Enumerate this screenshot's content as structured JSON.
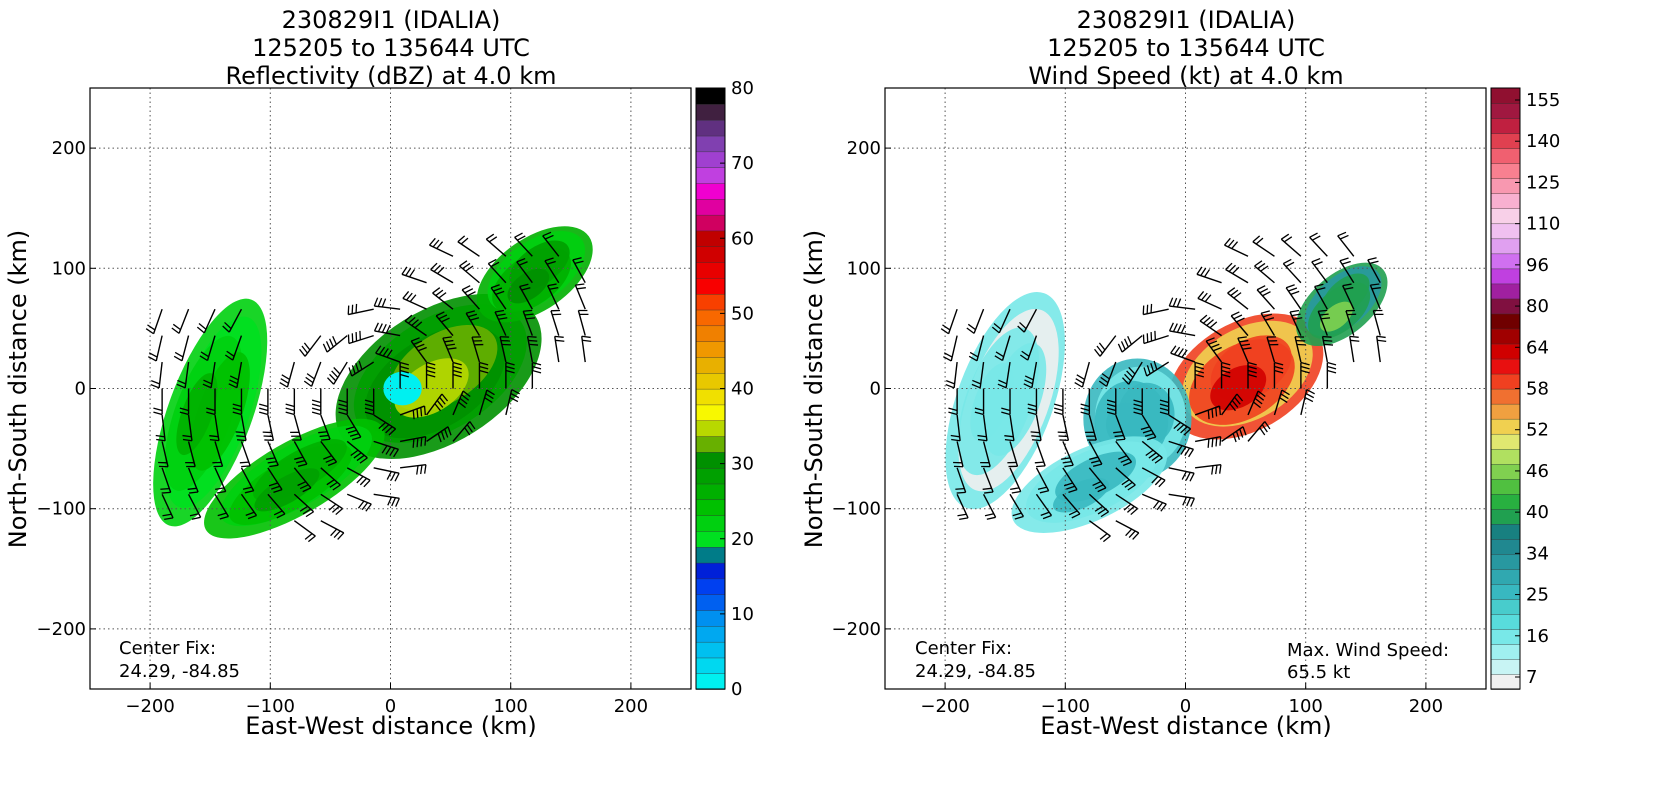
{
  "chart_data": [
    {
      "type": "heatmap",
      "title": [
        "230829I1 (IDALIA)",
        "125205 to 135644 UTC",
        "Reflectivity (dBZ) at 4.0 km"
      ],
      "xlabel": "East-West distance (km)",
      "ylabel": "North-South distance (km)",
      "xlim": [
        -250,
        250
      ],
      "ylim": [
        -250,
        250
      ],
      "xticks": [
        -200,
        -100,
        0,
        100,
        200
      ],
      "yticks": [
        -200,
        -100,
        0,
        100,
        200
      ],
      "xtick_labels": [
        "−200",
        "−100",
        "0",
        "100",
        "200"
      ],
      "ytick_labels": [
        "−200",
        "−100",
        "0",
        "100",
        "200"
      ],
      "grid": true,
      "annotations": [
        {
          "text": "Center Fix:",
          "corner": "bottom-left",
          "line": 1
        },
        {
          "text": "24.29, -84.85",
          "corner": "bottom-left",
          "line": 2
        }
      ],
      "colorbar": {
        "min": 0,
        "max": 80,
        "ticks": [
          0,
          10,
          20,
          30,
          40,
          50,
          60,
          70,
          80
        ],
        "tick_labels": [
          "0",
          "10",
          "20",
          "30",
          "40",
          "50",
          "60",
          "70",
          "80"
        ],
        "colors": [
          "#00f0f0",
          "#00d8f0",
          "#00c0f0",
          "#00a8f0",
          "#0090f0",
          "#0060f0",
          "#0040f0",
          "#0020d8",
          "#007c88",
          "#00e020",
          "#00d010",
          "#00c000",
          "#00b000",
          "#00a000",
          "#009000",
          "#68b000",
          "#b8d800",
          "#f8f800",
          "#f0e000",
          "#e8c800",
          "#e8b000",
          "#f09800",
          "#f08000",
          "#f86800",
          "#f84000",
          "#f80000",
          "#e80000",
          "#d00000",
          "#c00000",
          "#d00060",
          "#e000a0",
          "#f000d0",
          "#c040e0",
          "#a040d0",
          "#8040b0",
          "#603080",
          "#402040",
          "#000000"
        ]
      },
      "storm_center": [
        0,
        0
      ],
      "rain_regions": [
        {
          "name": "inner-core",
          "cx": 40,
          "cy": 10,
          "rx": 95,
          "ry": 55,
          "rotation": -32,
          "value": 30
        },
        {
          "name": "eye",
          "cx": 10,
          "cy": 0,
          "rx": 16,
          "ry": 14,
          "rotation": 0,
          "value": 0
        },
        {
          "name": "ne-arm",
          "cx": 120,
          "cy": 95,
          "rx": 55,
          "ry": 30,
          "rotation": -35,
          "value": 25
        },
        {
          "name": "sw-band",
          "cx": -150,
          "cy": -20,
          "rx": 35,
          "ry": 100,
          "rotation": 20,
          "value": 22
        },
        {
          "name": "s-band",
          "cx": -80,
          "cy": -75,
          "rx": 85,
          "ry": 30,
          "rotation": -30,
          "value": 24
        }
      ]
    },
    {
      "type": "heatmap",
      "title": [
        "230829I1 (IDALIA)",
        "125205 to 135644 UTC",
        "Wind Speed (kt) at 4.0 km"
      ],
      "xlabel": "East-West distance (km)",
      "ylabel": "North-South distance (km)",
      "xlim": [
        -250,
        250
      ],
      "ylim": [
        -250,
        250
      ],
      "xticks": [
        -200,
        -100,
        0,
        100,
        200
      ],
      "yticks": [
        -200,
        -100,
        0,
        100,
        200
      ],
      "xtick_labels": [
        "−200",
        "−100",
        "0",
        "100",
        "200"
      ],
      "ytick_labels": [
        "−200",
        "−100",
        "0",
        "100",
        "200"
      ],
      "grid": true,
      "annotations": [
        {
          "text": "Center Fix:",
          "corner": "bottom-left",
          "line": 1
        },
        {
          "text": "24.29, -84.85",
          "corner": "bottom-left",
          "line": 2
        },
        {
          "text": "Max. Wind Speed:",
          "corner": "bottom-right",
          "line": 1
        },
        {
          "text": "65.5 kt",
          "corner": "bottom-right",
          "line": 2
        }
      ],
      "colorbar": {
        "tick_labels": [
          "7",
          "16",
          "25",
          "34",
          "40",
          "46",
          "52",
          "58",
          "64",
          "80",
          "96",
          "110",
          "125",
          "140",
          "155"
        ],
        "colors": [
          "#f0f0f0",
          "#c8f4f4",
          "#a0f0f0",
          "#78e8e8",
          "#58dcdc",
          "#48cccc",
          "#38b8c0",
          "#30a8b0",
          "#2898a0",
          "#208890",
          "#188080",
          "#20a050",
          "#28b040",
          "#50c040",
          "#80d050",
          "#b0e060",
          "#e0e870",
          "#f0d050",
          "#f0a040",
          "#f07030",
          "#f04020",
          "#e81010",
          "#d00000",
          "#a00000",
          "#700000",
          "#801040",
          "#a020a0",
          "#c040e0",
          "#d070f0",
          "#e0a0f0",
          "#f0c0f0",
          "#f8d0e8",
          "#f8b0d0",
          "#f898b0",
          "#f88090",
          "#f06070",
          "#e04050",
          "#c02040",
          "#a01840",
          "#901030"
        ]
      },
      "storm_center": [
        0,
        0
      ],
      "wind_regions": [
        {
          "name": "east-core",
          "cx": 50,
          "cy": 10,
          "rx": 70,
          "ry": 45,
          "rotation": -30,
          "value": 58
        },
        {
          "name": "west-core",
          "cx": -40,
          "cy": -25,
          "rx": 45,
          "ry": 50,
          "rotation": 0,
          "value": 25
        },
        {
          "name": "ne-arm",
          "cx": 130,
          "cy": 70,
          "rx": 45,
          "ry": 25,
          "rotation": -40,
          "value": 40
        },
        {
          "name": "sw-band",
          "cx": -150,
          "cy": -10,
          "rx": 40,
          "ry": 95,
          "rotation": 20,
          "value": 16
        },
        {
          "name": "s-band",
          "cx": -80,
          "cy": -80,
          "rx": 70,
          "ry": 30,
          "rotation": -25,
          "value": 22
        }
      ],
      "max_wind_location": [
        45,
        10
      ]
    }
  ]
}
